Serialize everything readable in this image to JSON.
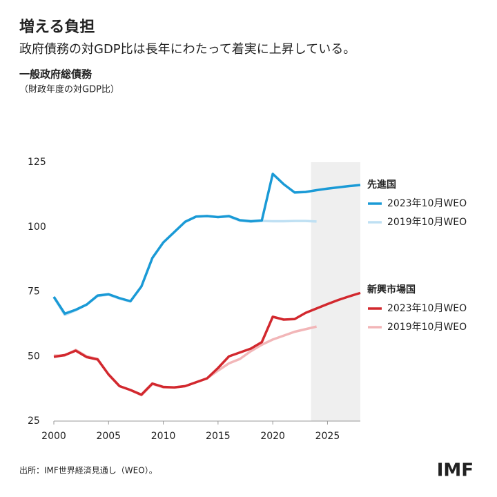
{
  "header": {
    "title": "増える負担",
    "subtitle": "政府債務の対GDP比は長年にわたって着実に上昇している。"
  },
  "chart_data": {
    "type": "line",
    "title": "一般政府総債務",
    "subtitle": "（財政年度の対GDP比）",
    "x": [
      2000,
      2001,
      2002,
      2003,
      2004,
      2005,
      2006,
      2007,
      2008,
      2009,
      2010,
      2011,
      2012,
      2013,
      2014,
      2015,
      2016,
      2017,
      2018,
      2019,
      2020,
      2021,
      2022,
      2023,
      2024,
      2025,
      2026,
      2027,
      2028
    ],
    "xlim": [
      2000,
      2028
    ],
    "xticks": [
      2000,
      2005,
      2010,
      2015,
      2020,
      2025
    ],
    "ylim": [
      25,
      125
    ],
    "yticks": [
      25,
      50,
      75,
      100,
      125
    ],
    "grid": false,
    "shade": {
      "x": [
        2023.5,
        2028
      ],
      "color": "#efefef"
    },
    "groups": [
      {
        "name": "先進国",
        "color": "#1a9ad6",
        "series": [
          {
            "name": "2023年10月WEO",
            "color": "#1a9ad6",
            "values": [
              73,
              66.5,
              68,
              70,
              73.5,
              74,
              72.5,
              71.3,
              77,
              88,
              94,
              98,
              102,
              104,
              104.2,
              103.8,
              104.2,
              102.6,
              102.2,
              102.5,
              120.5,
              116.5,
              113.3,
              113.5,
              114.2,
              114.8,
              115.3,
              115.8,
              116.2
            ]
          },
          {
            "name": "2019年10月WEO",
            "color": "#bfe0f3",
            "values": [
              72.8,
              66,
              67.8,
              70,
              73.3,
              73.8,
              72.3,
              71.2,
              77,
              88,
              94,
              98,
              102,
              104,
              104.2,
              103.8,
              104,
              102.4,
              102,
              102.3,
              102.2,
              102.2,
              102.3,
              102.3,
              102.1,
              null,
              null,
              null,
              null
            ]
          }
        ]
      },
      {
        "name": "新興市場国",
        "color": "#d2282e",
        "series": [
          {
            "name": "2023年10月WEO",
            "color": "#d2282e",
            "values": [
              49.8,
              50.5,
              52.2,
              49.7,
              48.8,
              43,
              38.5,
              37,
              35.2,
              39.5,
              38.2,
              38,
              38.5,
              40,
              41.5,
              45.5,
              50,
              51.5,
              53,
              55.5,
              65.3,
              64.2,
              64.4,
              66.8,
              68.5,
              70.2,
              71.8,
              73.2,
              74.5
            ]
          },
          {
            "name": "2019年10月WEO",
            "color": "#f2b6b8",
            "values": [
              50.3,
              50.3,
              52.5,
              50,
              49,
              43,
              38.5,
              37,
              35,
              39.3,
              38,
              38,
              38.5,
              40,
              41.5,
              44.5,
              47.3,
              49,
              52,
              54.5,
              56.5,
              58,
              59.5,
              60.5,
              61.5,
              null,
              null,
              null,
              null
            ]
          }
        ]
      }
    ]
  },
  "footer": {
    "source": "出所：IMF世界経済見通し（WEO）。",
    "logo": "IMF"
  }
}
